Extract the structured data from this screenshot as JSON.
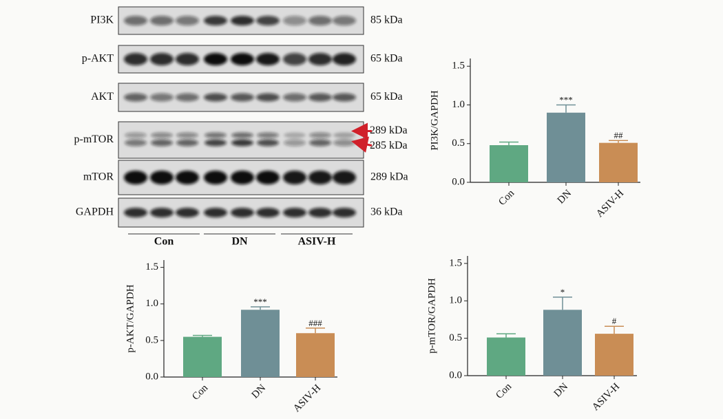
{
  "blot": {
    "rows": [
      {
        "label": "PI3K",
        "sizes": [
          "85 kDa"
        ]
      },
      {
        "label": "p-AKT",
        "sizes": [
          "65 kDa"
        ]
      },
      {
        "label": "AKT",
        "sizes": [
          "65 kDa"
        ]
      },
      {
        "label": "p-mTOR",
        "sizes": [
          "289 kDa",
          "285 kDa"
        ]
      },
      {
        "label": "mTOR",
        "sizes": [
          "289 kDa"
        ]
      },
      {
        "label": "GAPDH",
        "sizes": [
          "36 kDa"
        ]
      }
    ],
    "groups": [
      "Con",
      "DN",
      "ASIV-H"
    ]
  },
  "chart_data": [
    {
      "type": "bar",
      "y_label": "PI3K/GAPDH",
      "categories": [
        "Con",
        "DN",
        "ASIV-H"
      ],
      "values": [
        0.48,
        0.9,
        0.51
      ],
      "errors": [
        0.04,
        0.1,
        0.03
      ],
      "sig_labels": [
        null,
        "***",
        "##"
      ],
      "colors": [
        "#5fa882",
        "#6f8f96",
        "#c98d55"
      ],
      "ylim": [
        0,
        1.6
      ],
      "yticks": [
        {
          "value": 0,
          "label": "0.0"
        },
        0.5,
        {
          "value": 1,
          "label": "1.0"
        },
        1.5
      ]
    },
    {
      "type": "bar",
      "y_label": "p-AKT/GAPDH",
      "categories": [
        "Con",
        "DN",
        "ASIV-H"
      ],
      "values": [
        0.55,
        0.92,
        0.6
      ],
      "errors": [
        0.02,
        0.04,
        0.07
      ],
      "sig_labels": [
        null,
        "***",
        "###"
      ],
      "colors": [
        "#5fa882",
        "#6f8f96",
        "#c98d55"
      ],
      "ylim": [
        0,
        1.6
      ],
      "yticks": [
        {
          "value": 0,
          "label": "0.0"
        },
        0.5,
        {
          "value": 1,
          "label": "1.0"
        },
        1.5
      ]
    },
    {
      "type": "bar",
      "y_label": "p-mTOR/GAPDH",
      "categories": [
        "Con",
        "DN",
        "ASIV-H"
      ],
      "values": [
        0.51,
        0.88,
        0.56
      ],
      "errors": [
        0.05,
        0.17,
        0.1
      ],
      "sig_labels": [
        null,
        "*",
        "#"
      ],
      "colors": [
        "#5fa882",
        "#6f8f96",
        "#c98d55"
      ],
      "ylim": [
        0,
        1.6
      ],
      "yticks": [
        {
          "value": 0,
          "label": "0.0"
        },
        0.5,
        {
          "value": 1,
          "label": "1.0"
        },
        1.5
      ]
    }
  ]
}
